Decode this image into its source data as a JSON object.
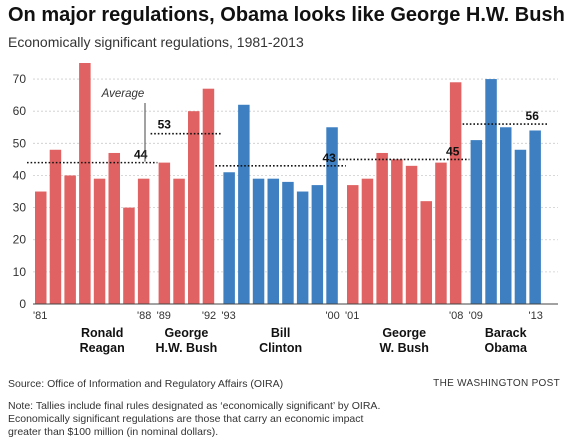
{
  "title": "On major regulations, Obama looks like George H.W. Bush",
  "subtitle": "Economically significant regulations, 1981-2013",
  "source": "Source: Office of Information and Regulatory Affairs (OIRA)",
  "credit": "THE WASHINGTON POST",
  "note_lines": [
    "Note: Tallies include final rules designated as ‘economically significant’ by OIRA.",
    "Economically significant regulations are those that carry an economic impact",
    "greater than $100 million (in nominal dollars)."
  ],
  "colors": {
    "republican": "#e06262",
    "democrat": "#3d7fc1",
    "axis": "#444444",
    "grid": "#cccccc"
  },
  "chart_data": {
    "type": "bar",
    "ylim": [
      0,
      75
    ],
    "yticks": [
      0,
      10,
      20,
      30,
      40,
      50,
      60,
      70
    ],
    "average_label": "Average",
    "series": [
      {
        "name": "Ronald Reagan",
        "party": "republican",
        "years": [
          1981,
          1982,
          1983,
          1984,
          1985,
          1986,
          1987,
          1988
        ],
        "values": [
          35,
          48,
          40,
          75,
          39,
          47,
          30,
          39
        ],
        "average": 44,
        "year_labels": [
          "'81",
          "'88"
        ],
        "label_lines": [
          "Ronald",
          "Reagan"
        ]
      },
      {
        "name": "George H.W. Bush",
        "party": "republican",
        "years": [
          1989,
          1990,
          1991,
          1992
        ],
        "values": [
          44,
          39,
          60,
          67
        ],
        "average": 53,
        "year_labels": [
          "'89",
          "'92"
        ],
        "label_lines": [
          "George",
          "H.W. Bush"
        ]
      },
      {
        "name": "Bill Clinton",
        "party": "democrat",
        "years": [
          1993,
          1994,
          1995,
          1996,
          1997,
          1998,
          1999,
          2000
        ],
        "values": [
          41,
          62,
          39,
          39,
          38,
          35,
          37,
          55
        ],
        "average": 43,
        "year_labels": [
          "'93",
          "'00"
        ],
        "label_lines": [
          "Bill",
          "Clinton"
        ]
      },
      {
        "name": "George W. Bush",
        "party": "republican",
        "years": [
          2001,
          2002,
          2003,
          2004,
          2005,
          2006,
          2007,
          2008
        ],
        "values": [
          37,
          39,
          47,
          45,
          43,
          32,
          44,
          69
        ],
        "average": 45,
        "year_labels": [
          "'01",
          "'08"
        ],
        "label_lines": [
          "George",
          "W. Bush"
        ]
      },
      {
        "name": "Barack Obama",
        "party": "democrat",
        "years": [
          2009,
          2010,
          2011,
          2012,
          2013
        ],
        "values": [
          51,
          70,
          55,
          48,
          54
        ],
        "average": 56,
        "year_labels": [
          "'09",
          "'13"
        ],
        "label_lines": [
          "Barack",
          "Obama"
        ]
      }
    ]
  }
}
